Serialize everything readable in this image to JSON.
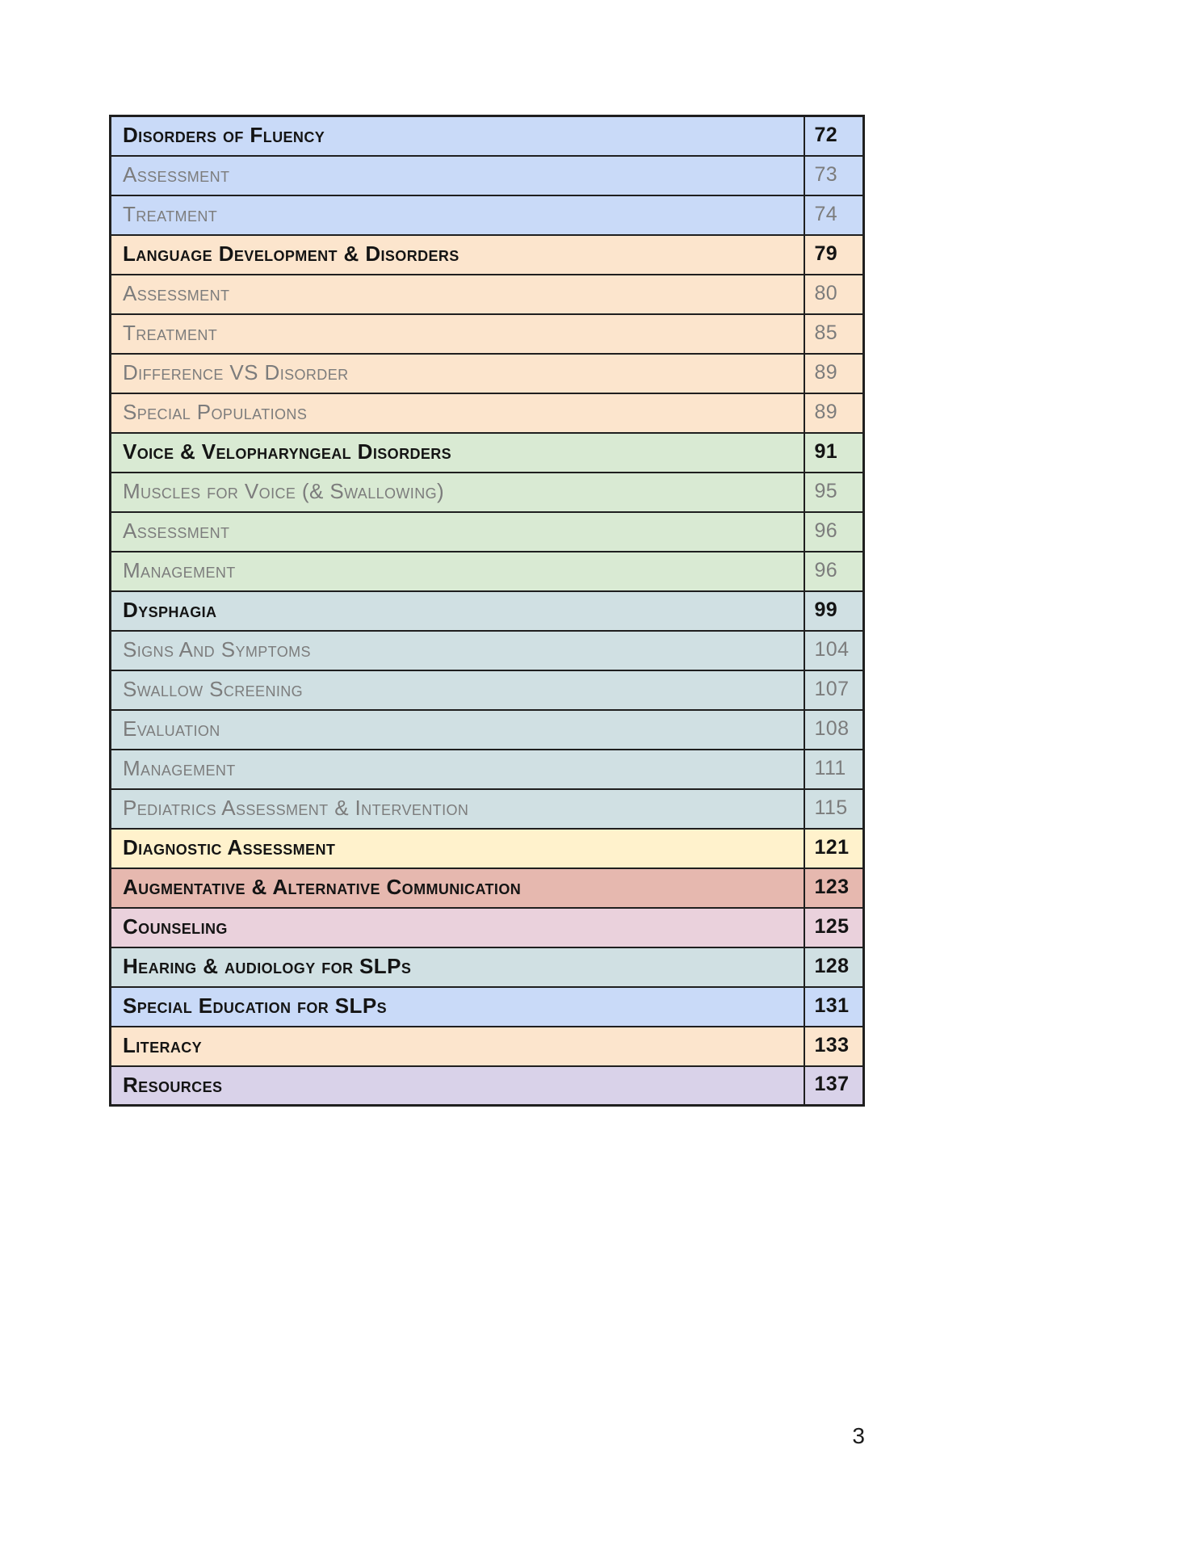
{
  "document": {
    "footer_page_number": "3"
  },
  "colors": {
    "blue": "#c9daf8",
    "peach": "#fce5cd",
    "green": "#d9ead3",
    "cyan": "#d0e0e3",
    "yellow": "#fff2cc",
    "salmon": "#e6b8af",
    "pink": "#ead1dc",
    "purple": "#d9d2e9",
    "border": "#1f1f1f",
    "header_text": "#141414",
    "sub_text": "#7c7c7c"
  },
  "toc": {
    "rows": [
      {
        "label": "Disorders of Fluency",
        "page": "72",
        "level": "header",
        "color": "blue"
      },
      {
        "label": "Assessment",
        "page": "73",
        "level": "sub",
        "color": "blue"
      },
      {
        "label": "Treatment",
        "page": "74",
        "level": "sub",
        "color": "blue"
      },
      {
        "label": "Language Development & Disorders",
        "page": "79",
        "level": "header",
        "color": "peach"
      },
      {
        "label": "Assessment",
        "page": "80",
        "level": "sub",
        "color": "peach"
      },
      {
        "label": "Treatment",
        "page": "85",
        "level": "sub",
        "color": "peach"
      },
      {
        "label": "Difference VS Disorder",
        "page": "89",
        "level": "sub",
        "color": "peach"
      },
      {
        "label": "Special Populations",
        "page": "89",
        "level": "sub",
        "color": "peach"
      },
      {
        "label": "Voice & Velopharyngeal Disorders",
        "page": "91",
        "level": "header",
        "color": "green"
      },
      {
        "label": "Muscles for Voice (& Swallowing)",
        "page": "95",
        "level": "sub",
        "color": "green"
      },
      {
        "label": "Assessment",
        "page": "96",
        "level": "sub",
        "color": "green"
      },
      {
        "label": "Management",
        "page": "96",
        "level": "sub",
        "color": "green"
      },
      {
        "label": "Dysphagia",
        "page": "99",
        "level": "header",
        "color": "cyan"
      },
      {
        "label": "Signs And Symptoms",
        "page": "104",
        "level": "sub",
        "color": "cyan"
      },
      {
        "label": "Swallow Screening",
        "page": "107",
        "level": "sub",
        "color": "cyan"
      },
      {
        "label": "Evaluation",
        "page": "108",
        "level": "sub",
        "color": "cyan"
      },
      {
        "label": "Management",
        "page": "111",
        "level": "sub",
        "color": "cyan"
      },
      {
        "label": "Pediatrics Assessment & Intervention",
        "page": "115",
        "level": "sub",
        "color": "cyan"
      },
      {
        "label": "Diagnostic Assessment",
        "page": "121",
        "level": "header",
        "color": "yellow"
      },
      {
        "label": "Augmentative & Alternative Communication",
        "page": "123",
        "level": "header",
        "color": "salmon"
      },
      {
        "label": "Counseling",
        "page": "125",
        "level": "header",
        "color": "pink"
      },
      {
        "label": "Hearing & audiology for SLPs",
        "page": "128",
        "level": "header",
        "color": "cyan"
      },
      {
        "label": "Special Education for SLPs",
        "page": "131",
        "level": "header",
        "color": "blue"
      },
      {
        "label": "Literacy",
        "page": "133",
        "level": "header",
        "color": "peach"
      },
      {
        "label": "Resources",
        "page": "137",
        "level": "header",
        "color": "purple"
      }
    ]
  }
}
